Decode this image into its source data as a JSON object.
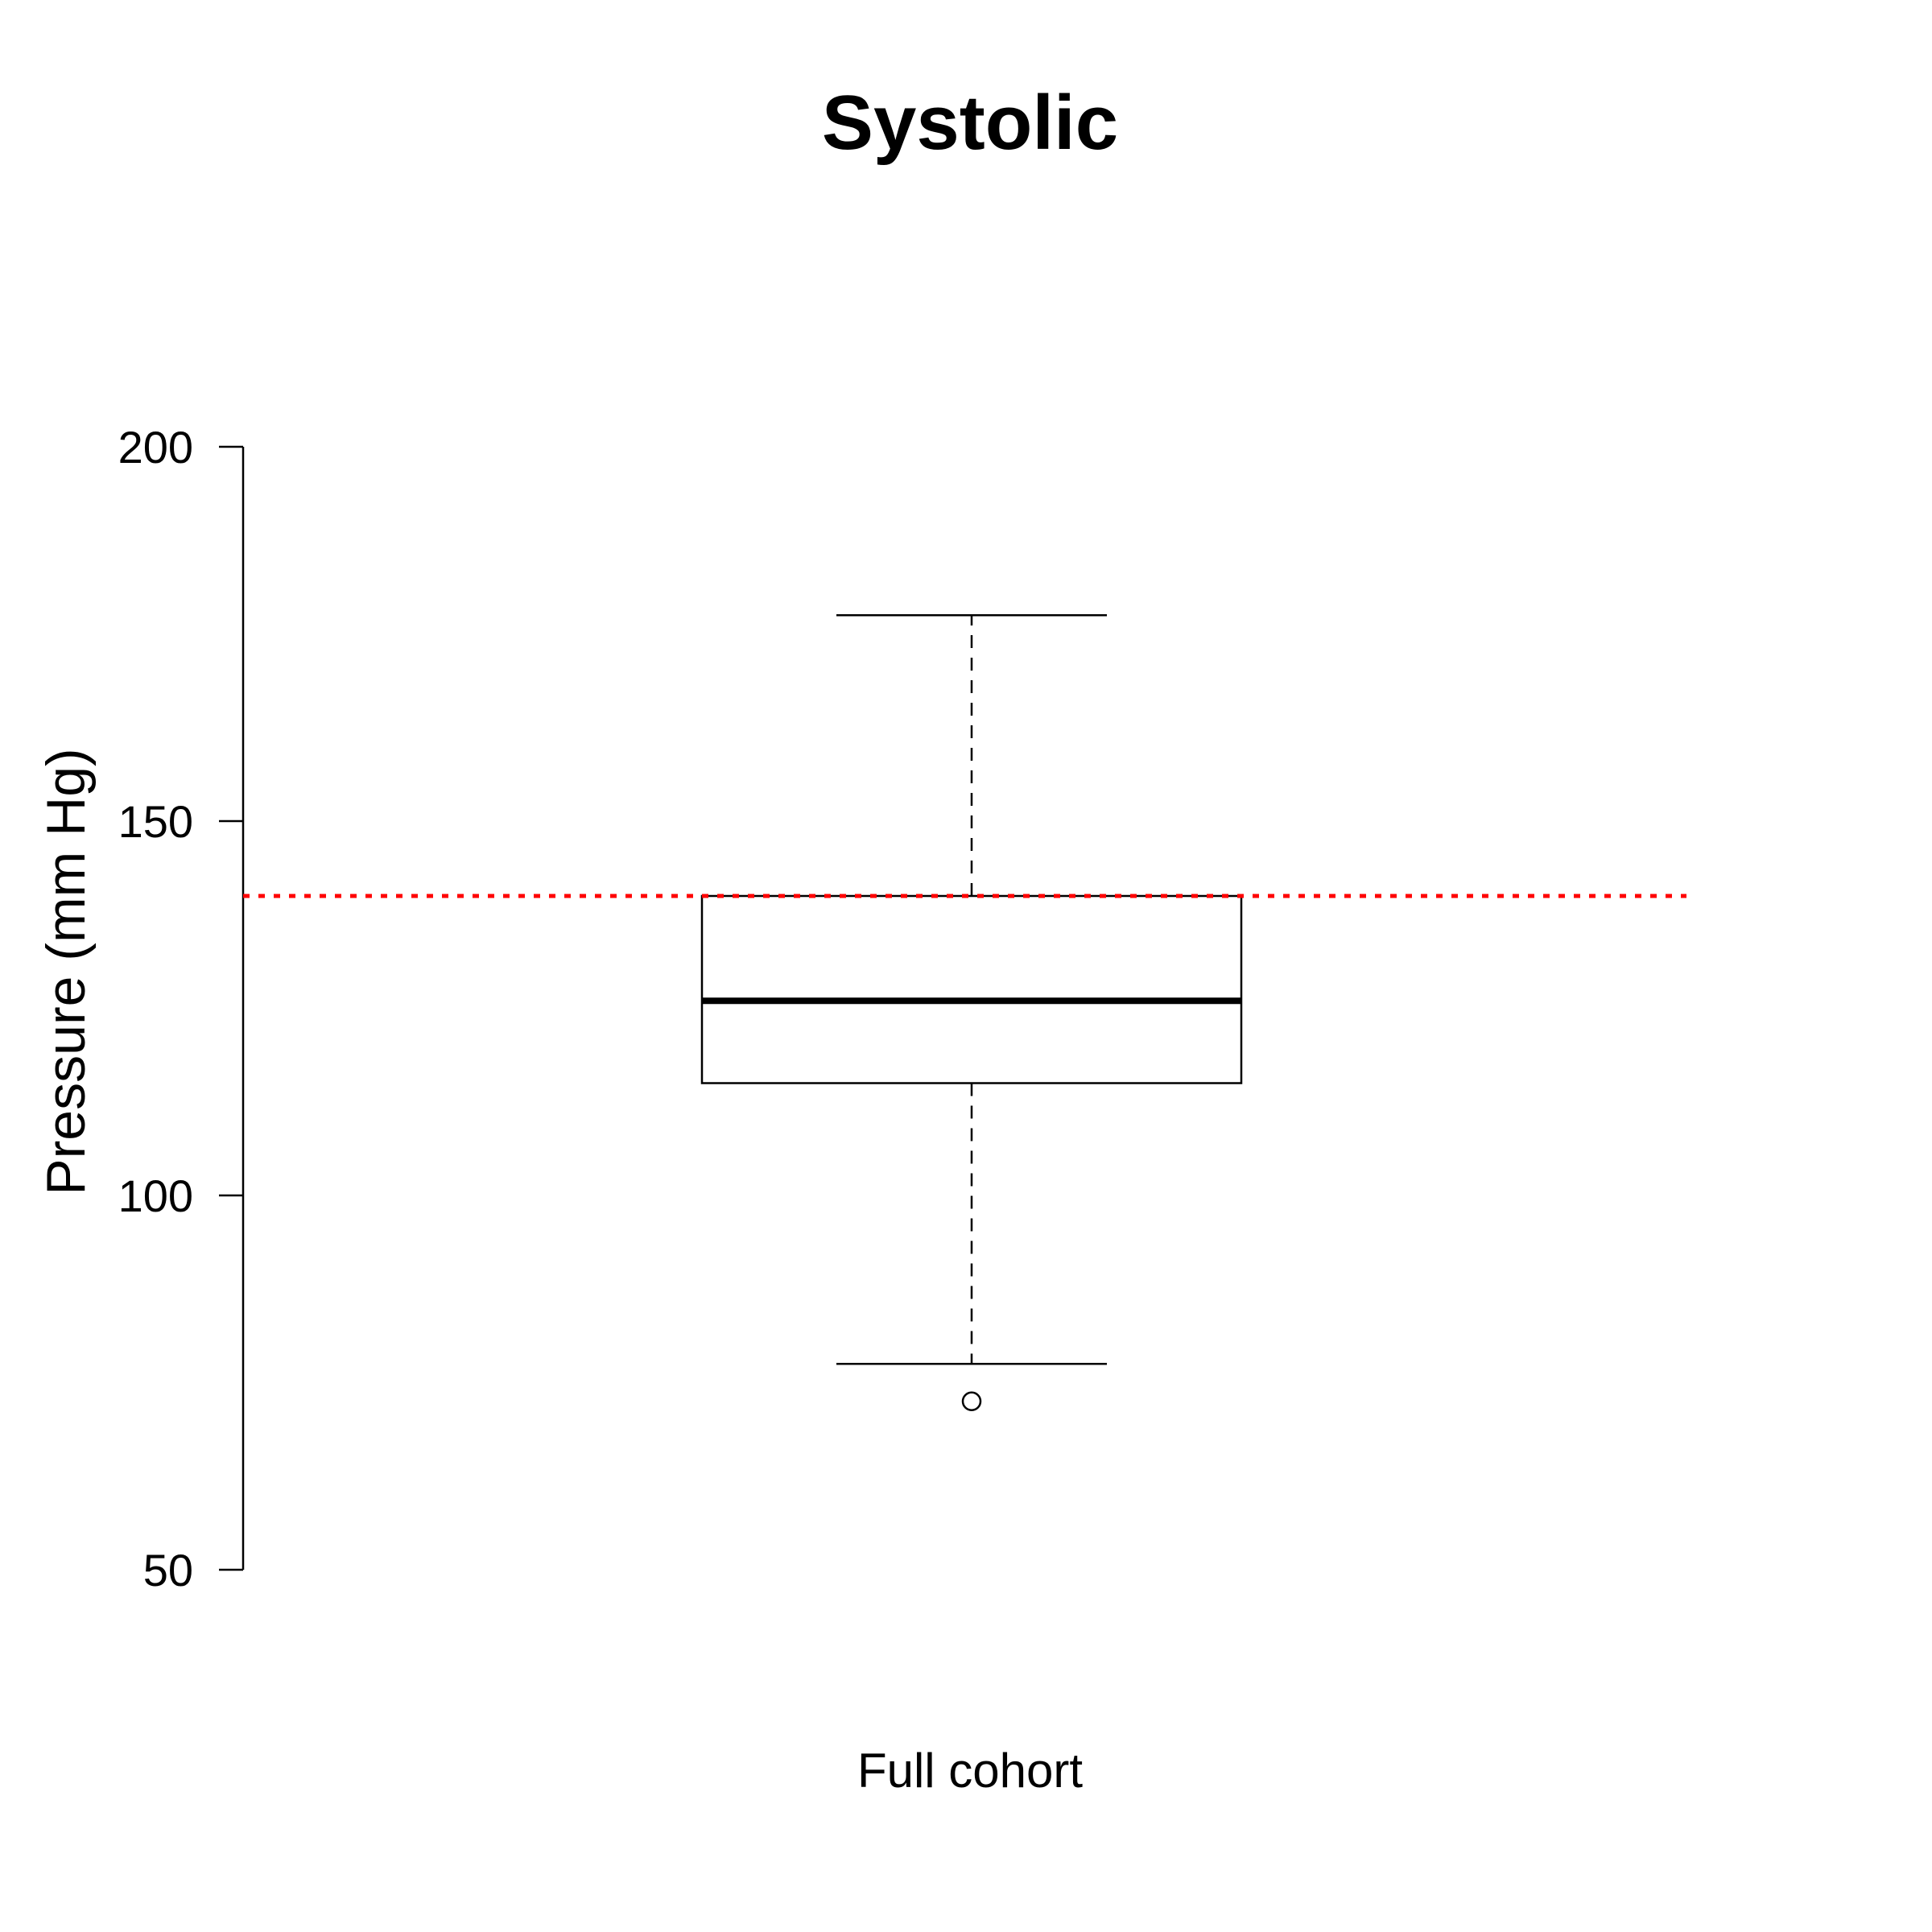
{
  "chart_data": {
    "type": "boxplot",
    "title": "Systolic",
    "xlabel": "Full cohort",
    "ylabel": "Pressure (mm Hg)",
    "ylim": [
      50,
      200
    ],
    "yticks": [
      50,
      100,
      150,
      200
    ],
    "grid": false,
    "boxes": [
      {
        "whisker_low": 77.5,
        "q1": 115,
        "median": 126,
        "q3": 140,
        "whisker_high": 177.5,
        "outliers": [
          72.5
        ]
      }
    ],
    "reference_line": {
      "value": 140,
      "color": "#ff0000",
      "style": "dotted"
    },
    "colors": {
      "box": "#000000",
      "background": "#ffffff"
    }
  }
}
